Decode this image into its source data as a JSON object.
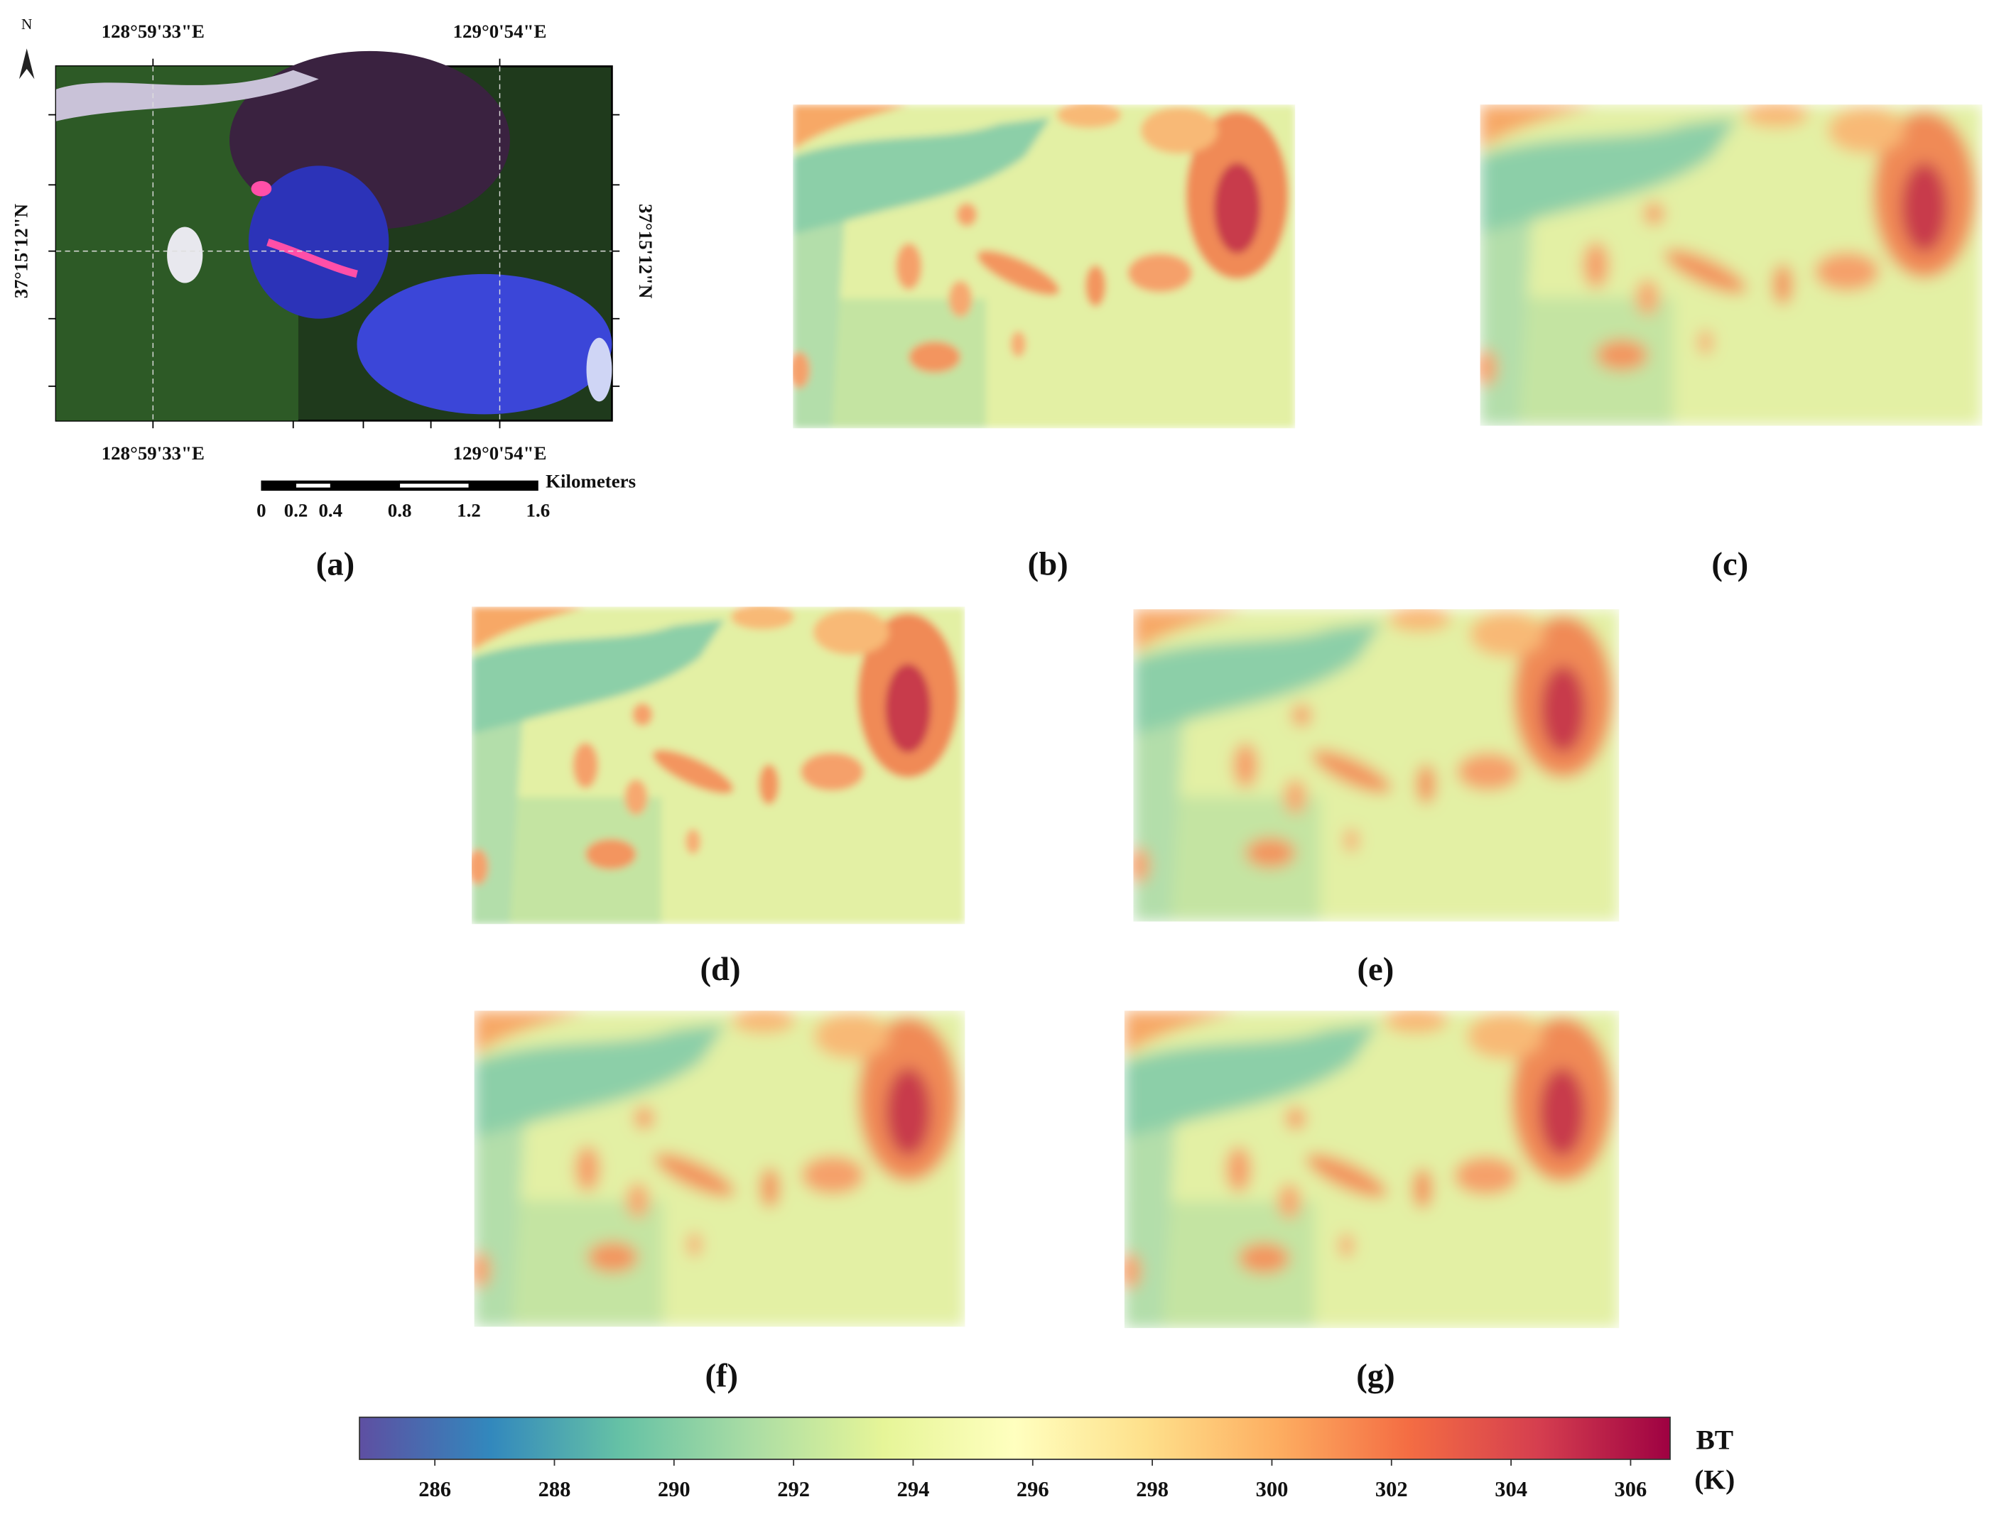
{
  "panels": [
    "(a)",
    "(b)",
    "(c)",
    "(d)",
    "(e)",
    "(f)",
    "(g)"
  ],
  "map_a": {
    "north": "N",
    "top_labels": [
      "128°59'33\"E",
      "129°0'54\"E"
    ],
    "bottom_labels": [
      "128°59'33\"E",
      "129°0'54\"E"
    ],
    "left_label": "37°15'12\"N",
    "right_label": "37°15'12\"N",
    "scale_bar": {
      "unit": "Kilometers",
      "ticks": [
        0,
        0.2,
        0.4,
        0.8,
        1.2,
        1.6
      ]
    }
  },
  "colorbar": {
    "label": "BT",
    "unit": "(K)",
    "lim": [
      284.74,
      306.66
    ],
    "ticks": [
      286,
      288,
      290,
      292,
      294,
      296,
      298,
      300,
      302,
      304,
      306
    ],
    "colors": [
      "#5e4fa2",
      "#3288bd",
      "#66c2a5",
      "#abdda4",
      "#e6f598",
      "#ffffbf",
      "#fee08b",
      "#fdae61",
      "#f46d43",
      "#d53e4f",
      "#9e0142"
    ]
  }
}
